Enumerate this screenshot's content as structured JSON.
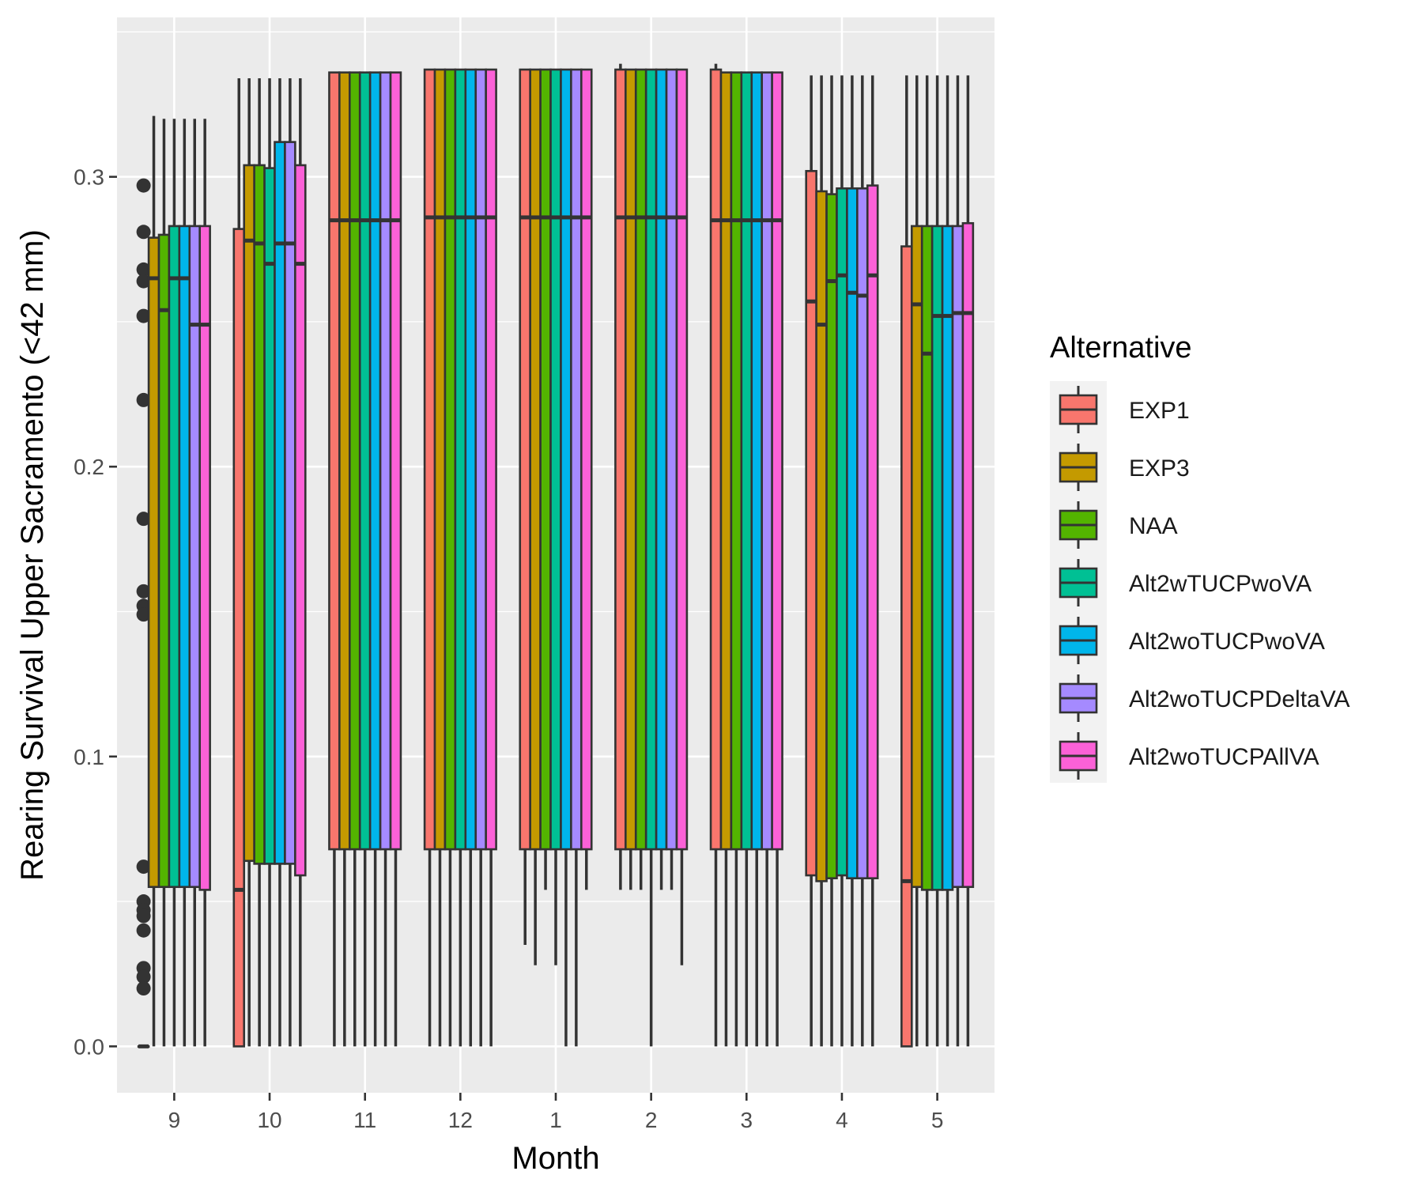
{
  "chart_data": {
    "type": "boxplot",
    "title": "",
    "xlabel": "Month",
    "ylabel": "Rearing Survival Upper Sacramento (<42 mm)",
    "ylim": [
      -0.016,
      0.355
    ],
    "yticks": [
      "0.0",
      "0.1",
      "0.2",
      "0.3"
    ],
    "ytick_values": [
      0.0,
      0.1,
      0.2,
      0.3
    ],
    "grid": true,
    "legend_position": "right",
    "legend_title": "Alternative",
    "categories": [
      "9",
      "10",
      "11",
      "12",
      "1",
      "2",
      "3",
      "4",
      "5"
    ],
    "series": [
      {
        "name": "EXP1",
        "color": "#F8766D",
        "boxes": [
          {
            "low": 0.0,
            "q1": 0.0,
            "median": 0.0,
            "q3": 0.0,
            "high": 0.0,
            "outliers": [
              0.297,
              0.281,
              0.268,
              0.264,
              0.252,
              0.223,
              0.182,
              0.157,
              0.152,
              0.149,
              0.062,
              0.05,
              0.047,
              0.045,
              0.04,
              0.027,
              0.024,
              0.02
            ]
          },
          {
            "low": 0.0,
            "q1": 0.0,
            "median": 0.054,
            "q3": 0.282,
            "high": 0.334
          },
          {
            "low": 0.0,
            "q1": 0.068,
            "median": 0.285,
            "q3": 0.336,
            "high": 0.336
          },
          {
            "low": 0.0,
            "q1": 0.068,
            "median": 0.286,
            "q3": 0.337,
            "high": 0.337
          },
          {
            "low": 0.035,
            "q1": 0.068,
            "median": 0.286,
            "q3": 0.337,
            "high": 0.337
          },
          {
            "low": 0.054,
            "q1": 0.068,
            "median": 0.286,
            "q3": 0.337,
            "high": 0.339
          },
          {
            "low": 0.0,
            "q1": 0.068,
            "median": 0.285,
            "q3": 0.337,
            "high": 0.339
          },
          {
            "low": 0.0,
            "q1": 0.059,
            "median": 0.257,
            "q3": 0.302,
            "high": 0.335
          },
          {
            "low": 0.0,
            "q1": 0.0,
            "median": 0.057,
            "q3": 0.276,
            "high": 0.335
          }
        ]
      },
      {
        "name": "EXP3",
        "color": "#C49A00",
        "boxes": [
          {
            "low": 0.0,
            "q1": 0.055,
            "median": 0.265,
            "q3": 0.279,
            "high": 0.321
          },
          {
            "low": 0.0,
            "q1": 0.064,
            "median": 0.278,
            "q3": 0.304,
            "high": 0.334
          },
          {
            "low": 0.0,
            "q1": 0.068,
            "median": 0.285,
            "q3": 0.336,
            "high": 0.336
          },
          {
            "low": 0.0,
            "q1": 0.068,
            "median": 0.286,
            "q3": 0.337,
            "high": 0.337
          },
          {
            "low": 0.028,
            "q1": 0.068,
            "median": 0.286,
            "q3": 0.337,
            "high": 0.337
          },
          {
            "low": 0.054,
            "q1": 0.068,
            "median": 0.286,
            "q3": 0.337,
            "high": 0.337
          },
          {
            "low": 0.0,
            "q1": 0.068,
            "median": 0.285,
            "q3": 0.336,
            "high": 0.336
          },
          {
            "low": 0.0,
            "q1": 0.057,
            "median": 0.249,
            "q3": 0.295,
            "high": 0.335
          },
          {
            "low": 0.0,
            "q1": 0.055,
            "median": 0.256,
            "q3": 0.283,
            "high": 0.335
          }
        ]
      },
      {
        "name": "NAA",
        "color": "#53B400",
        "boxes": [
          {
            "low": 0.0,
            "q1": 0.055,
            "median": 0.254,
            "q3": 0.28,
            "high": 0.32
          },
          {
            "low": 0.0,
            "q1": 0.063,
            "median": 0.277,
            "q3": 0.304,
            "high": 0.334
          },
          {
            "low": 0.0,
            "q1": 0.068,
            "median": 0.285,
            "q3": 0.336,
            "high": 0.336
          },
          {
            "low": 0.0,
            "q1": 0.068,
            "median": 0.286,
            "q3": 0.337,
            "high": 0.337
          },
          {
            "low": 0.054,
            "q1": 0.068,
            "median": 0.286,
            "q3": 0.337,
            "high": 0.337
          },
          {
            "low": 0.054,
            "q1": 0.068,
            "median": 0.286,
            "q3": 0.337,
            "high": 0.337
          },
          {
            "low": 0.0,
            "q1": 0.068,
            "median": 0.285,
            "q3": 0.336,
            "high": 0.336
          },
          {
            "low": 0.0,
            "q1": 0.058,
            "median": 0.264,
            "q3": 0.294,
            "high": 0.335
          },
          {
            "low": 0.0,
            "q1": 0.054,
            "median": 0.239,
            "q3": 0.283,
            "high": 0.335
          }
        ]
      },
      {
        "name": "Alt2wTUCPwoVA",
        "color": "#00C094",
        "boxes": [
          {
            "low": 0.0,
            "q1": 0.055,
            "median": 0.265,
            "q3": 0.283,
            "high": 0.32
          },
          {
            "low": 0.0,
            "q1": 0.063,
            "median": 0.27,
            "q3": 0.303,
            "high": 0.334
          },
          {
            "low": 0.0,
            "q1": 0.068,
            "median": 0.285,
            "q3": 0.336,
            "high": 0.336
          },
          {
            "low": 0.0,
            "q1": 0.068,
            "median": 0.286,
            "q3": 0.337,
            "high": 0.337
          },
          {
            "low": 0.028,
            "q1": 0.068,
            "median": 0.286,
            "q3": 0.337,
            "high": 0.337
          },
          {
            "low": 0.0,
            "q1": 0.068,
            "median": 0.286,
            "q3": 0.337,
            "high": 0.337
          },
          {
            "low": 0.0,
            "q1": 0.068,
            "median": 0.285,
            "q3": 0.336,
            "high": 0.336
          },
          {
            "low": 0.0,
            "q1": 0.059,
            "median": 0.266,
            "q3": 0.296,
            "high": 0.335
          },
          {
            "low": 0.0,
            "q1": 0.054,
            "median": 0.252,
            "q3": 0.283,
            "high": 0.335
          }
        ]
      },
      {
        "name": "Alt2woTUCPwoVA",
        "color": "#00B6EB",
        "boxes": [
          {
            "low": 0.0,
            "q1": 0.055,
            "median": 0.265,
            "q3": 0.283,
            "high": 0.32
          },
          {
            "low": 0.0,
            "q1": 0.063,
            "median": 0.277,
            "q3": 0.312,
            "high": 0.334
          },
          {
            "low": 0.0,
            "q1": 0.068,
            "median": 0.285,
            "q3": 0.336,
            "high": 0.336
          },
          {
            "low": 0.0,
            "q1": 0.068,
            "median": 0.286,
            "q3": 0.337,
            "high": 0.337
          },
          {
            "low": 0.0,
            "q1": 0.068,
            "median": 0.286,
            "q3": 0.337,
            "high": 0.337
          },
          {
            "low": 0.054,
            "q1": 0.068,
            "median": 0.286,
            "q3": 0.337,
            "high": 0.337
          },
          {
            "low": 0.0,
            "q1": 0.068,
            "median": 0.285,
            "q3": 0.336,
            "high": 0.336
          },
          {
            "low": 0.0,
            "q1": 0.058,
            "median": 0.26,
            "q3": 0.296,
            "high": 0.335
          },
          {
            "low": 0.0,
            "q1": 0.054,
            "median": 0.252,
            "q3": 0.283,
            "high": 0.335
          }
        ]
      },
      {
        "name": "Alt2woTUCPDeltaVA",
        "color": "#A58AFF",
        "boxes": [
          {
            "low": 0.0,
            "q1": 0.055,
            "median": 0.249,
            "q3": 0.283,
            "high": 0.32
          },
          {
            "low": 0.0,
            "q1": 0.063,
            "median": 0.277,
            "q3": 0.312,
            "high": 0.334
          },
          {
            "low": 0.0,
            "q1": 0.068,
            "median": 0.285,
            "q3": 0.336,
            "high": 0.336
          },
          {
            "low": 0.0,
            "q1": 0.068,
            "median": 0.286,
            "q3": 0.337,
            "high": 0.337
          },
          {
            "low": 0.0,
            "q1": 0.068,
            "median": 0.286,
            "q3": 0.337,
            "high": 0.337
          },
          {
            "low": 0.054,
            "q1": 0.068,
            "median": 0.286,
            "q3": 0.337,
            "high": 0.337
          },
          {
            "low": 0.0,
            "q1": 0.068,
            "median": 0.285,
            "q3": 0.336,
            "high": 0.336
          },
          {
            "low": 0.0,
            "q1": 0.058,
            "median": 0.259,
            "q3": 0.296,
            "high": 0.335
          },
          {
            "low": 0.0,
            "q1": 0.055,
            "median": 0.253,
            "q3": 0.283,
            "high": 0.335
          }
        ]
      },
      {
        "name": "Alt2woTUCPAllVA",
        "color": "#FB61D7",
        "boxes": [
          {
            "low": 0.0,
            "q1": 0.054,
            "median": 0.249,
            "q3": 0.283,
            "high": 0.32
          },
          {
            "low": 0.0,
            "q1": 0.059,
            "median": 0.27,
            "q3": 0.304,
            "high": 0.334
          },
          {
            "low": 0.0,
            "q1": 0.068,
            "median": 0.285,
            "q3": 0.336,
            "high": 0.336
          },
          {
            "low": 0.0,
            "q1": 0.068,
            "median": 0.286,
            "q3": 0.337,
            "high": 0.337
          },
          {
            "low": 0.054,
            "q1": 0.068,
            "median": 0.286,
            "q3": 0.337,
            "high": 0.337
          },
          {
            "low": 0.028,
            "q1": 0.068,
            "median": 0.286,
            "q3": 0.337,
            "high": 0.337
          },
          {
            "low": 0.0,
            "q1": 0.068,
            "median": 0.285,
            "q3": 0.336,
            "high": 0.336
          },
          {
            "low": 0.0,
            "q1": 0.058,
            "median": 0.266,
            "q3": 0.297,
            "high": 0.335
          },
          {
            "low": 0.0,
            "q1": 0.055,
            "median": 0.253,
            "q3": 0.284,
            "high": 0.335
          }
        ]
      }
    ]
  }
}
